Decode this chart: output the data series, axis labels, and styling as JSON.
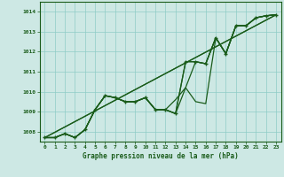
{
  "xlabel": "Graphe pression niveau de la mer (hPa)",
  "background_color": "#cde8e4",
  "line_color": "#1a5c1a",
  "grid_color": "#8eccc6",
  "xlim": [
    -0.5,
    23.5
  ],
  "ylim": [
    1007.5,
    1014.5
  ],
  "xticks": [
    0,
    1,
    2,
    3,
    4,
    5,
    6,
    7,
    8,
    9,
    10,
    11,
    12,
    13,
    14,
    15,
    16,
    17,
    18,
    19,
    20,
    21,
    22,
    23
  ],
  "yticks": [
    1008,
    1009,
    1010,
    1011,
    1012,
    1013,
    1014
  ],
  "series1": [
    1007.7,
    1007.7,
    1007.9,
    1007.7,
    1008.1,
    1009.1,
    1009.8,
    1009.7,
    1009.5,
    1009.5,
    1009.7,
    1009.1,
    1009.1,
    1008.9,
    1011.5,
    1011.5,
    1011.4,
    1012.7,
    1011.9,
    1013.3,
    1013.3,
    1013.7,
    1013.8,
    1013.85
  ],
  "series2": [
    1007.7,
    1007.7,
    1007.9,
    1007.7,
    1008.1,
    1009.1,
    1009.8,
    1009.7,
    1009.5,
    1009.5,
    1009.7,
    1009.1,
    1009.1,
    1009.6,
    1010.2,
    1009.5,
    1009.4,
    1012.7,
    1011.9,
    1013.3,
    1013.3,
    1013.7,
    1013.8,
    1013.85
  ],
  "series3": [
    1007.7,
    1007.7,
    1007.9,
    1007.7,
    1008.1,
    1009.1,
    1009.8,
    1009.7,
    1009.5,
    1009.5,
    1009.7,
    1009.1,
    1009.1,
    1008.9,
    1010.2,
    1011.5,
    1011.4,
    1012.7,
    1011.9,
    1013.3,
    1013.3,
    1013.7,
    1013.8,
    1013.85
  ],
  "trend1": [
    1007.7,
    1013.85
  ],
  "trend1_x": [
    0,
    23
  ],
  "trend2": [
    1007.7,
    1013.85
  ],
  "trend2_x": [
    0,
    23
  ],
  "marker_series": [
    1007.7,
    1007.7,
    1007.9,
    1007.7,
    1008.1,
    1009.1,
    1009.8,
    1009.7,
    1009.5,
    1009.5,
    1009.7,
    1009.1,
    1009.1,
    1008.9,
    1011.5,
    1011.5,
    1011.4,
    1012.7,
    1011.9,
    1013.3,
    1013.3,
    1013.7,
    1013.8,
    1013.85
  ]
}
